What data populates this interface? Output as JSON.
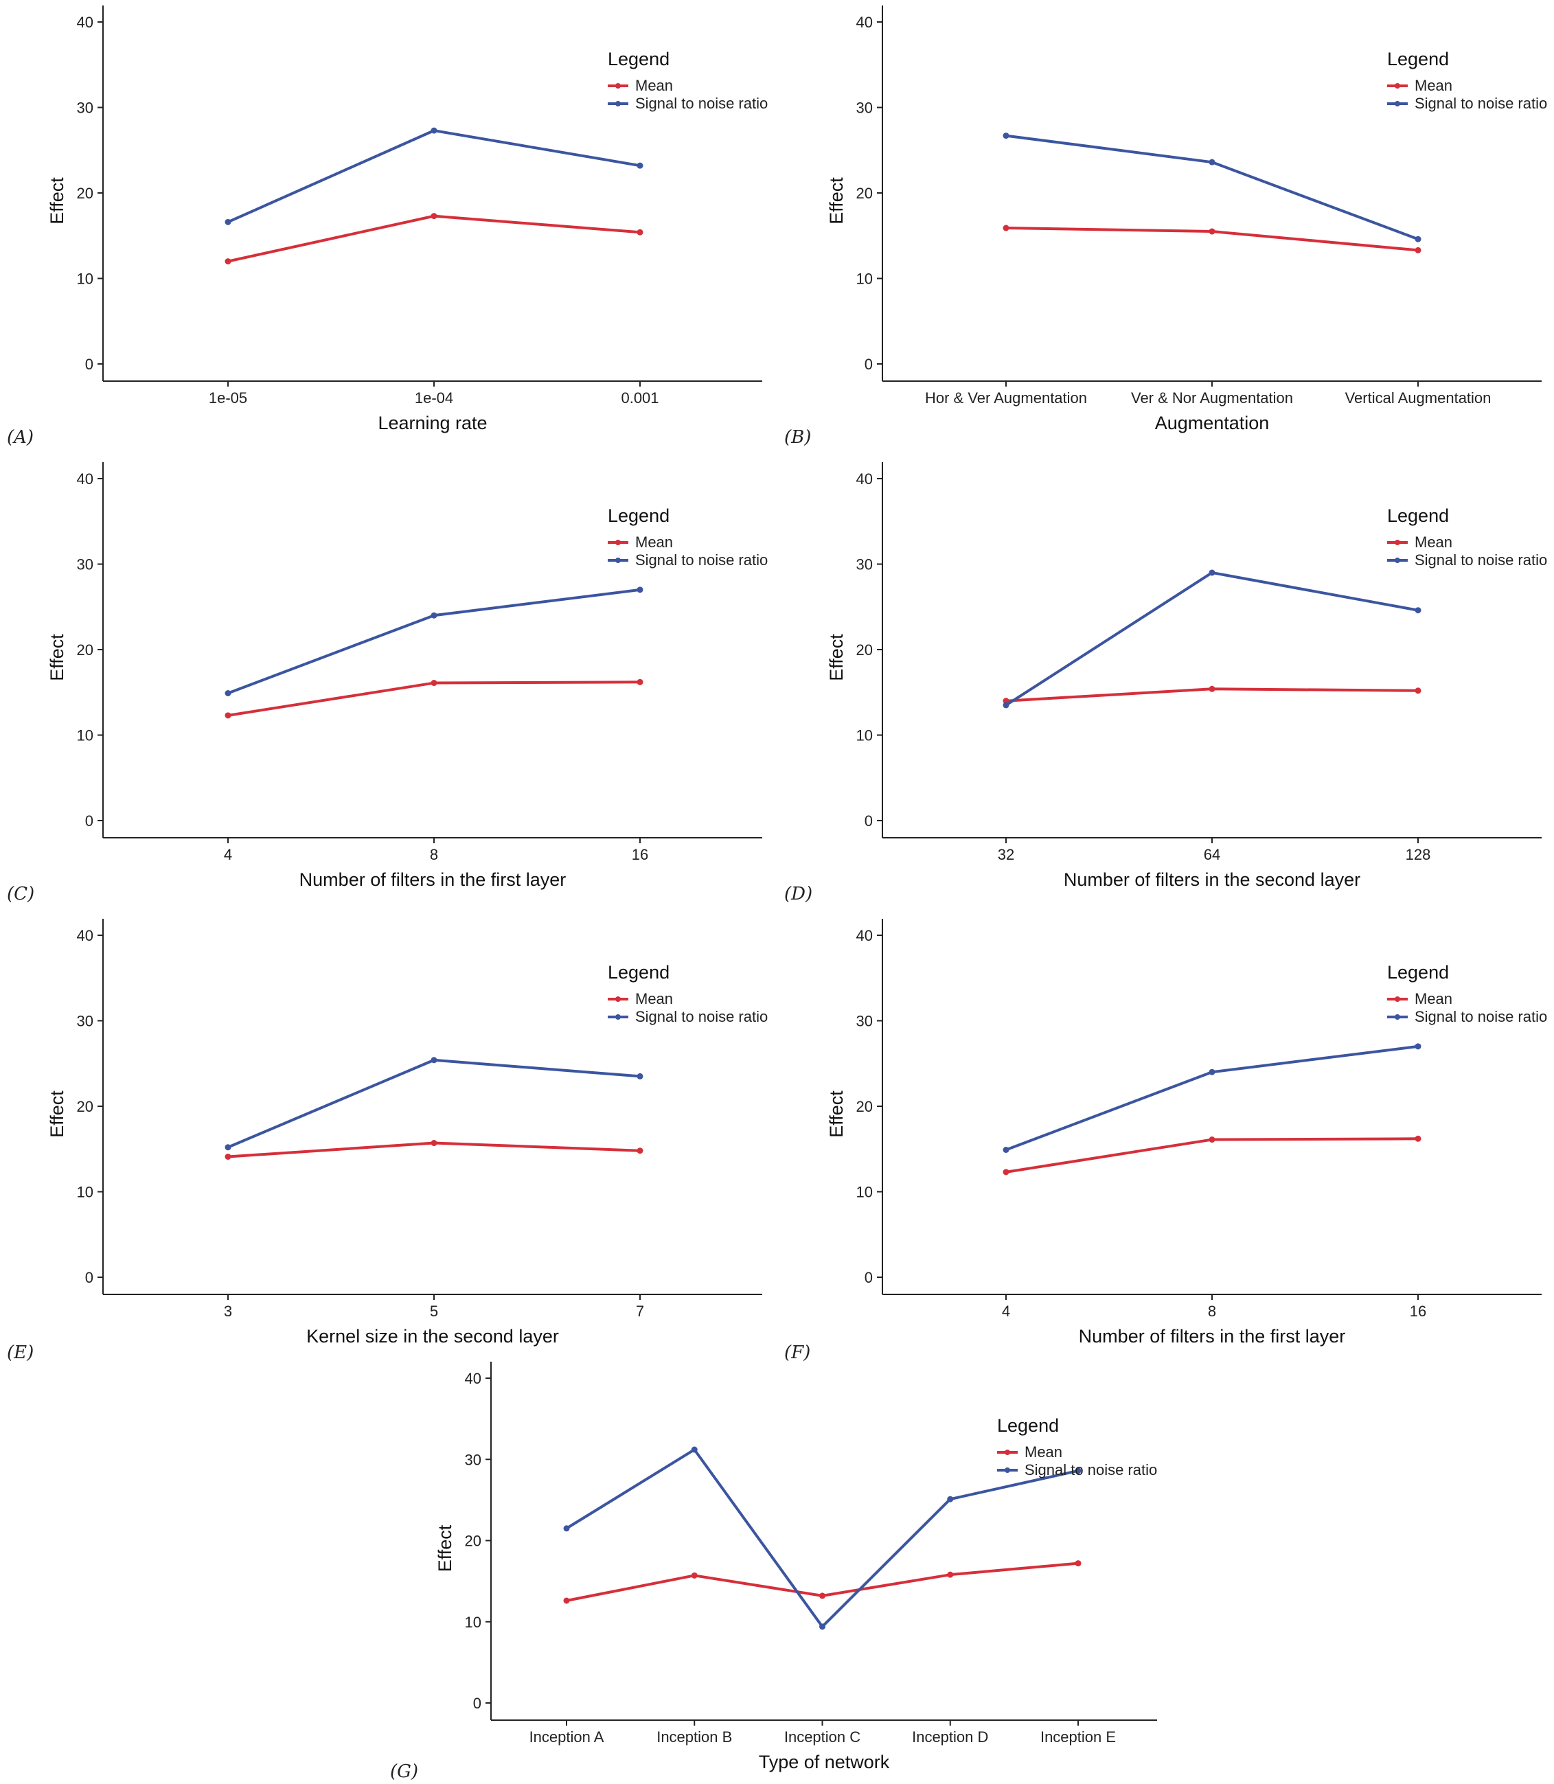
{
  "colors": {
    "mean": "#d62f3a",
    "snr": "#3b55a0",
    "axis": "#222222"
  },
  "chart_data": [
    {
      "panel": "(A)",
      "type": "line",
      "xlabel": "Learning rate",
      "ylabel": "Effect",
      "ylim": [
        0,
        40
      ],
      "yticks": [
        "0",
        "10",
        "20",
        "30",
        "40"
      ],
      "categories": [
        "1e-05",
        "1e-04",
        "0.001"
      ],
      "legend_title": "Legend",
      "legend_position": "top-right",
      "series": [
        {
          "name": "Mean",
          "values": [
            12.0,
            17.3,
            15.4
          ]
        },
        {
          "name": "Signal to noise ratio",
          "values": [
            16.6,
            27.3,
            23.2
          ]
        }
      ]
    },
    {
      "panel": "(B)",
      "type": "line",
      "xlabel": "Augmentation",
      "ylabel": "Effect",
      "ylim": [
        0,
        40
      ],
      "yticks": [
        "0",
        "10",
        "20",
        "30",
        "40"
      ],
      "categories": [
        "Hor & Ver Augmentation",
        "Ver & Nor Augmentation",
        "Vertical Augmentation"
      ],
      "legend_title": "Legend",
      "legend_position": "top-right",
      "series": [
        {
          "name": "Mean",
          "values": [
            15.9,
            15.5,
            13.3
          ]
        },
        {
          "name": "Signal to noise ratio",
          "values": [
            26.7,
            23.6,
            14.6
          ]
        }
      ]
    },
    {
      "panel": "(C)",
      "type": "line",
      "xlabel": "Number of filters in the first layer",
      "ylabel": "Effect",
      "ylim": [
        0,
        40
      ],
      "yticks": [
        "0",
        "10",
        "20",
        "30",
        "40"
      ],
      "categories": [
        "4",
        "8",
        "16"
      ],
      "legend_title": "Legend",
      "legend_position": "top-right",
      "series": [
        {
          "name": "Mean",
          "values": [
            12.3,
            16.1,
            16.2
          ]
        },
        {
          "name": "Signal to noise ratio",
          "values": [
            14.9,
            24.0,
            27.0
          ]
        }
      ]
    },
    {
      "panel": "(D)",
      "type": "line",
      "xlabel": "Number of filters in the second layer",
      "ylabel": "Effect",
      "ylim": [
        0,
        40
      ],
      "yticks": [
        "0",
        "10",
        "20",
        "30",
        "40"
      ],
      "categories": [
        "32",
        "64",
        "128"
      ],
      "legend_title": "Legend",
      "legend_position": "top-right",
      "series": [
        {
          "name": "Mean",
          "values": [
            14.0,
            15.4,
            15.2
          ]
        },
        {
          "name": "Signal to noise ratio",
          "values": [
            13.5,
            29.0,
            24.6
          ]
        }
      ]
    },
    {
      "panel": "(E)",
      "type": "line",
      "xlabel": "Kernel size in the second layer",
      "ylabel": "Effect",
      "ylim": [
        0,
        40
      ],
      "yticks": [
        "0",
        "10",
        "20",
        "30",
        "40"
      ],
      "categories": [
        "3",
        "5",
        "7"
      ],
      "legend_title": "Legend",
      "legend_position": "top-right",
      "series": [
        {
          "name": "Mean",
          "values": [
            14.1,
            15.7,
            14.8
          ]
        },
        {
          "name": "Signal to noise ratio",
          "values": [
            15.2,
            25.4,
            23.5
          ]
        }
      ]
    },
    {
      "panel": "(F)",
      "type": "line",
      "xlabel": "Number of filters in the first layer",
      "ylabel": "Effect",
      "ylim": [
        0,
        40
      ],
      "yticks": [
        "0",
        "10",
        "20",
        "30",
        "40"
      ],
      "categories": [
        "4",
        "8",
        "16"
      ],
      "legend_title": "Legend",
      "legend_position": "top-right",
      "series": [
        {
          "name": "Mean",
          "values": [
            12.3,
            16.1,
            16.2
          ]
        },
        {
          "name": "Signal to noise ratio",
          "values": [
            14.9,
            24.0,
            27.0
          ]
        }
      ]
    },
    {
      "panel": "(G)",
      "type": "line",
      "xlabel": "Type of network",
      "ylabel": "Effect",
      "ylim": [
        0,
        40
      ],
      "yticks": [
        "0",
        "10",
        "20",
        "30",
        "40"
      ],
      "categories": [
        "Inception A",
        "Inception B",
        "Inception C",
        "Inception D",
        "Inception E"
      ],
      "legend_title": "Legend",
      "legend_position": "top-right",
      "series": [
        {
          "name": "Mean",
          "values": [
            12.6,
            15.7,
            13.2,
            15.8,
            17.2
          ]
        },
        {
          "name": "Signal to noise ratio",
          "values": [
            21.5,
            31.2,
            9.4,
            25.1,
            28.6
          ]
        }
      ]
    }
  ]
}
